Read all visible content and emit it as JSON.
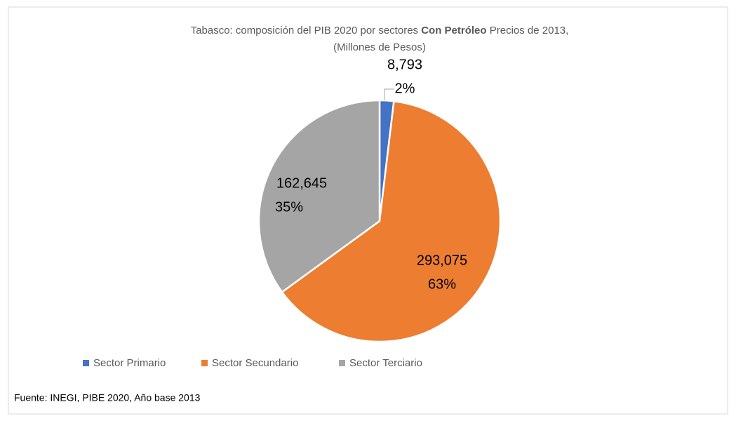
{
  "chart_data": {
    "type": "pie",
    "title": {
      "before": "Tabasco: composición del PIB 2020 por sectores",
      "bold": "Con Petróleo",
      "after": "Precios de 2013,",
      "line2": "(Millones de Pesos)"
    },
    "categories": [
      "Sector Primario",
      "Sector Secundario",
      "Sector Terciario"
    ],
    "values": [
      8793,
      293075,
      162645
    ],
    "value_labels": [
      "8,793",
      "293,075",
      "162,645"
    ],
    "percent_labels": [
      "2%",
      "63%",
      "35%"
    ],
    "colors": [
      "#4472c4",
      "#ed7d31",
      "#a5a5a5"
    ],
    "legend": "bottom",
    "source": "Fuente: INEGI, PIBE 2020, Año base 2013"
  }
}
